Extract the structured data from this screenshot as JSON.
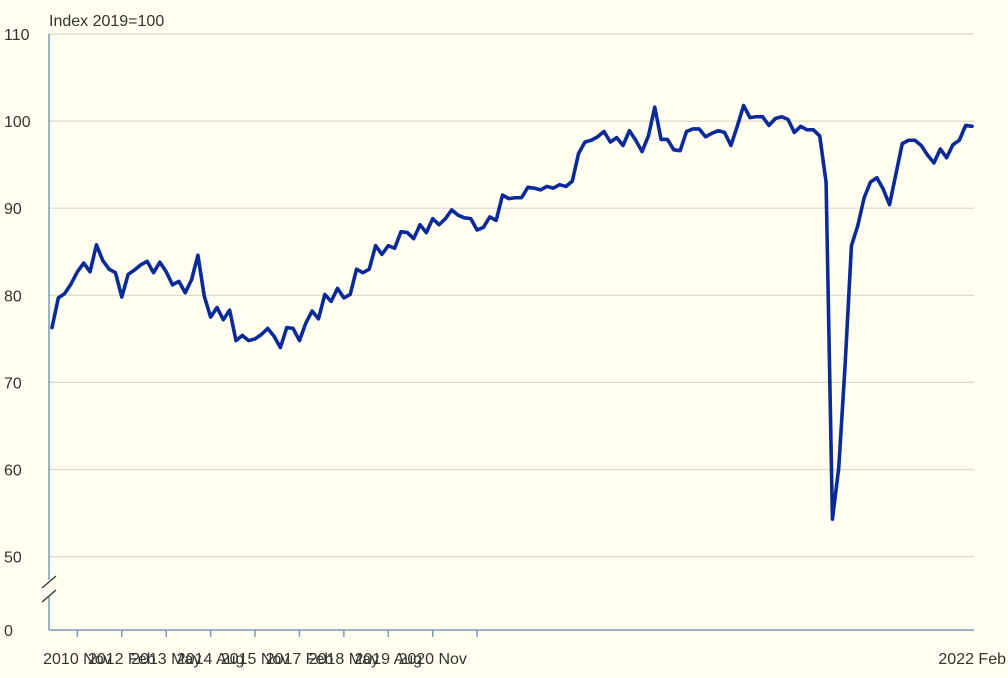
{
  "colors": {
    "background": "#FFFEF0",
    "series": "#0A2A9A",
    "grid": "#D9D9CC",
    "axis": "#7A9AB8",
    "text": "#333333"
  },
  "chart_data": {
    "type": "line",
    "title": "",
    "xlabel": "",
    "ylabel": "Index 2019=100",
    "ylim": [
      0,
      110
    ],
    "axis_break": [
      0,
      50
    ],
    "grid": "horizontal",
    "y_ticks": [
      "0",
      "50",
      "60",
      "70",
      "80",
      "90",
      "100",
      "110"
    ],
    "x_ticks": [
      "2010 Nov",
      "2012 Feb",
      "2013 May",
      "2014 Aug",
      "2015 Nov",
      "2017 Feb",
      "2018 May",
      "2019 Aug",
      "2020 Nov",
      "2022 Feb"
    ],
    "x_start": "2010 Feb",
    "x_step": "2 months",
    "series": [
      {
        "values": [
          76.3,
          79.7,
          80.2,
          81.3,
          82.7,
          83.7,
          82.7,
          85.8,
          84.0,
          83.0,
          82.6,
          79.8,
          82.4,
          82.9,
          83.5,
          83.9,
          82.6,
          83.8,
          82.7,
          81.2,
          81.6,
          80.3,
          81.8,
          84.6,
          79.9,
          77.5,
          78.6,
          77.2,
          78.3,
          74.8,
          75.4,
          74.8,
          75.0,
          75.5,
          76.2,
          75.3,
          74.0,
          76.3,
          76.2,
          74.8,
          76.8,
          78.2,
          77.3,
          80.1,
          79.3,
          80.8,
          79.7,
          80.1,
          83.0,
          82.6,
          83.0,
          85.7,
          84.7,
          85.7,
          85.4,
          87.3,
          87.2,
          86.5,
          88.1,
          87.2,
          88.8,
          88.1,
          88.8,
          89.8,
          89.2,
          88.9,
          88.8,
          87.5,
          87.8,
          89.0,
          88.6,
          91.5,
          91.1,
          91.2,
          91.2,
          92.4,
          92.3,
          92.1,
          92.5,
          92.3,
          92.7,
          92.5,
          93.1,
          96.3,
          97.6,
          97.8,
          98.2,
          98.8,
          97.6,
          98.1,
          97.2,
          98.9,
          97.8,
          96.5,
          98.3,
          101.6,
          97.9,
          97.9,
          96.7,
          96.6,
          98.8,
          99.1,
          99.1,
          98.2,
          98.6,
          98.9,
          98.7,
          97.2,
          99.4,
          101.8,
          100.4,
          100.5,
          100.5,
          99.5,
          100.3,
          100.5,
          100.2,
          98.7,
          99.4,
          99.0,
          99.0,
          98.3,
          93.0,
          54.3,
          60.2,
          72.0,
          85.7,
          88.0,
          91.2,
          93.0,
          93.5,
          92.2,
          90.4,
          93.9,
          97.4,
          97.8,
          97.8,
          97.2,
          96.1,
          95.2,
          96.8,
          95.8,
          97.3,
          97.8,
          99.5,
          99.4
        ]
      }
    ]
  }
}
